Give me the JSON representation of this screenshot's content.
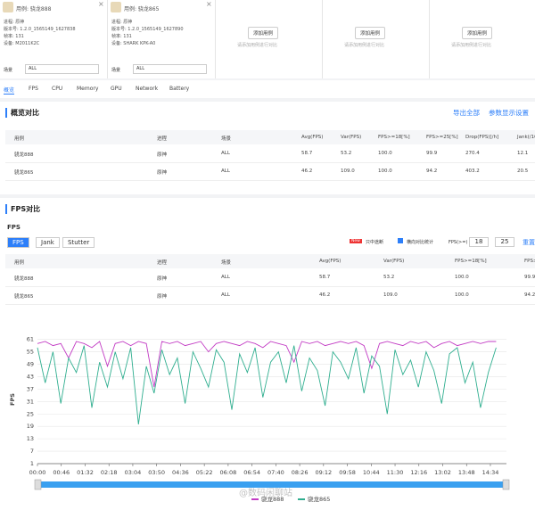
{
  "devices": [
    {
      "case": "用例: 骁龙888",
      "process": "进程: 原神",
      "version": "版本号: 1.2.0_1565149_1627838",
      "fps": "帧率: 131",
      "device": "设备: M2011K2C",
      "scene_label": "场景",
      "scene": "ALL"
    },
    {
      "case": "用例: 骁龙865",
      "process": "进程: 原神",
      "version": "版本号: 1.2.0_1565149_1627890",
      "fps": "帧率: 131",
      "device": "设备: SHARK KPK-A0",
      "scene_label": "场景",
      "scene": "ALL"
    }
  ],
  "add_slots": [
    {
      "button": "添加用例",
      "hint": "请添加用例进行对比"
    },
    {
      "button": "添加用例",
      "hint": "请添加用例进行对比"
    },
    {
      "button": "添加用例",
      "hint": "请添加用例进行对比"
    }
  ],
  "tabs": [
    "概览",
    "FPS",
    "CPU",
    "Memory",
    "GPU",
    "Network",
    "Battery"
  ],
  "overview": {
    "title": "概览对比",
    "actions": [
      "导出全部",
      "参数显示设置"
    ],
    "table": {
      "headers": [
        "用例",
        "进程",
        "场景",
        "Avg(FPS)",
        "Var(FPS)",
        "FPS>=18[%]",
        "FPS>=25[%]",
        "Drop(FPS)[/h]",
        "Jank(/10min)"
      ],
      "rows": [
        [
          "骁龙888",
          "原神",
          "ALL",
          "58.7",
          "53.2",
          "100.0",
          "99.9",
          "270.4",
          "12.1"
        ],
        [
          "骁龙865",
          "原神",
          "ALL",
          "46.2",
          "109.0",
          "100.0",
          "94.2",
          "403.2",
          "20.5"
        ]
      ]
    }
  },
  "fps_section": {
    "title": "FPS对比",
    "subtitle": "FPS",
    "buttons": [
      "FPS",
      "Jank",
      "Stutter"
    ],
    "badge": "New",
    "option1": "只中途断",
    "option2": "横向对比统计",
    "threshold_label": "FPS(>=)",
    "thresholds": [
      "18",
      "25"
    ],
    "reset": "重置",
    "table": {
      "headers": [
        "用例",
        "进程",
        "场景",
        "Avg(FPS)",
        "Var(FPS)",
        "FPS>=18[%]",
        "FPS>=25[%]"
      ],
      "rows": [
        [
          "骁龙888",
          "原神",
          "ALL",
          "58.7",
          "53.2",
          "100.0",
          "99.9"
        ],
        [
          "骁龙865",
          "原神",
          "ALL",
          "46.2",
          "109.0",
          "100.0",
          "94.2"
        ]
      ]
    }
  },
  "chart_data": {
    "type": "line",
    "ylabel": "FPS",
    "x": [
      0,
      15,
      30,
      45,
      60,
      75,
      90,
      105,
      120,
      135,
      150,
      165,
      180,
      195,
      210,
      225,
      240,
      255,
      270,
      285,
      300,
      315,
      330,
      345,
      360,
      375,
      390,
      405,
      420,
      435,
      450,
      465,
      480,
      495,
      510,
      525,
      540,
      555,
      570,
      585,
      600,
      615,
      630,
      645,
      660,
      675,
      690,
      705,
      720,
      735,
      750,
      765,
      780,
      795,
      810,
      825,
      840,
      855,
      870,
      885
    ],
    "xlim": [
      0,
      905
    ],
    "xticks": [
      {
        "value": 0,
        "label": "00:00"
      },
      {
        "value": 46,
        "label": "00:46"
      },
      {
        "value": 92,
        "label": "01:32"
      },
      {
        "value": 138,
        "label": "02:18"
      },
      {
        "value": 184,
        "label": "03:04"
      },
      {
        "value": 230,
        "label": "03:50"
      },
      {
        "value": 276,
        "label": "04:36"
      },
      {
        "value": 322,
        "label": "05:22"
      },
      {
        "value": 368,
        "label": "06:08"
      },
      {
        "value": 414,
        "label": "06:54"
      },
      {
        "value": 460,
        "label": "07:40"
      },
      {
        "value": 506,
        "label": "08:26"
      },
      {
        "value": 552,
        "label": "09:12"
      },
      {
        "value": 598,
        "label": "09:58"
      },
      {
        "value": 644,
        "label": "10:44"
      },
      {
        "value": 690,
        "label": "11:30"
      },
      {
        "value": 736,
        "label": "12:16"
      },
      {
        "value": 782,
        "label": "13:02"
      },
      {
        "value": 828,
        "label": "13:48"
      },
      {
        "value": 874,
        "label": "14:34"
      }
    ],
    "ylim": [
      1,
      63
    ],
    "yticks": [
      1,
      7,
      13,
      19,
      25,
      31,
      37,
      43,
      49,
      55,
      61
    ],
    "grid": true,
    "series": [
      {
        "name": "骁龙888",
        "color": "#c23bc4",
        "values": [
          59,
          60,
          58,
          59,
          52,
          60,
          59,
          57,
          60,
          48,
          59,
          60,
          58,
          60,
          59,
          38,
          60,
          59,
          60,
          58,
          59,
          60,
          55,
          59,
          60,
          59,
          58,
          60,
          59,
          57,
          60,
          59,
          58,
          50,
          60,
          59,
          60,
          58,
          59,
          60,
          59,
          60,
          58,
          47,
          59,
          60,
          59,
          58,
          60,
          59,
          60,
          57,
          59,
          60,
          58,
          59,
          60,
          59,
          60,
          60
        ]
      },
      {
        "name": "骁龙865",
        "color": "#2fae8f",
        "values": [
          57,
          40,
          55,
          30,
          52,
          45,
          58,
          28,
          50,
          38,
          55,
          42,
          57,
          20,
          48,
          35,
          56,
          44,
          52,
          30,
          55,
          47,
          38,
          56,
          50,
          27,
          54,
          45,
          57,
          33,
          50,
          55,
          40,
          58,
          36,
          52,
          46,
          29,
          55,
          50,
          42,
          57,
          35,
          53,
          48,
          25,
          56,
          44,
          51,
          38,
          55,
          46,
          30,
          54,
          57,
          40,
          50,
          28,
          45,
          57
        ]
      }
    ]
  },
  "watermark": "@数码闲聊站"
}
